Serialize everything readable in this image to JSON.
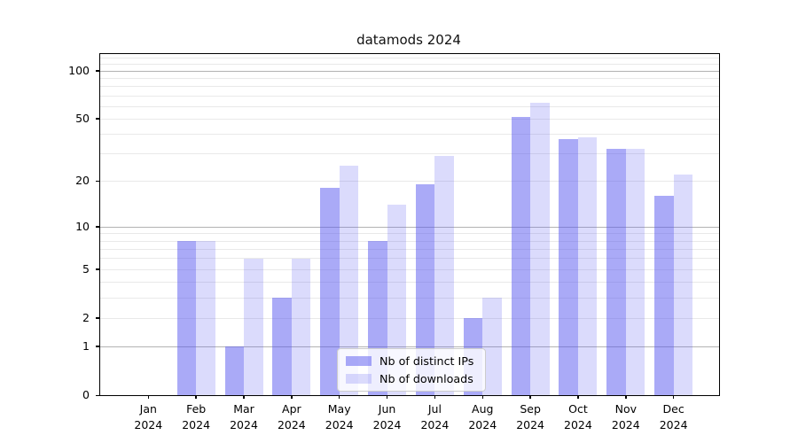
{
  "chart_data": {
    "type": "bar",
    "title": "datamods 2024",
    "categories": [
      "Jan",
      "Feb",
      "Mar",
      "Apr",
      "May",
      "Jun",
      "Jul",
      "Aug",
      "Sep",
      "Oct",
      "Nov",
      "Dec"
    ],
    "year": "2024",
    "tick_label_format": "{month}\n{year}",
    "series": [
      {
        "name": "Nb of distinct IPs",
        "values": [
          0,
          8,
          1,
          3,
          18,
          8,
          19,
          2,
          51,
          37,
          32,
          16
        ],
        "color": "rgba(85,85,240,0.5)"
      },
      {
        "name": "Nb of downloads",
        "values": [
          0,
          8,
          6,
          6,
          25,
          14,
          29,
          3,
          63,
          38,
          32,
          22
        ],
        "color": "rgba(85,85,240,0.21)"
      }
    ],
    "yscale": "log1p",
    "ylim": [
      0,
      127
    ],
    "yticks": [
      0,
      1,
      2,
      5,
      10,
      20,
      50,
      100
    ],
    "major_gridlines": [
      1,
      10,
      100
    ],
    "minor_gridlines": [
      2,
      3,
      4,
      5,
      6,
      7,
      8,
      9,
      20,
      30,
      40,
      50,
      60,
      70,
      80,
      90,
      110,
      120
    ],
    "grid": true,
    "legend_position": "lower center"
  },
  "colors": {
    "background": "#ffffff",
    "bar_base": "#5555f0",
    "major_grid": "#b3b3b3",
    "minor_grid": "#e9e9e9",
    "spine": "#000000",
    "text": "#000000",
    "legend_border": "#cccccc"
  }
}
